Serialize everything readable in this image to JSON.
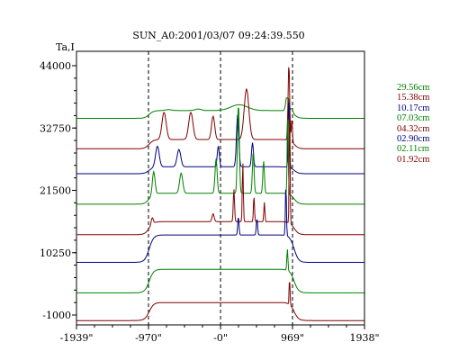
{
  "chart_data": {
    "type": "line",
    "title": "SUN_A0:2001/03/07 09:24:39.550",
    "ylabel": "Ta,I",
    "xlabel": "",
    "yticks": [
      "44000",
      "32750",
      "21500",
      "10250",
      "-1000"
    ],
    "xticks": [
      "-1939\"",
      "-970\"",
      "-0\"",
      "969\"",
      "1938\""
    ],
    "xlim": [
      -1939,
      1938
    ],
    "ylim": [
      -1000,
      44000
    ],
    "vlines": [
      -970,
      0,
      969
    ],
    "grid": false,
    "legend_position": "right",
    "series": [
      {
        "name": "29.56cm",
        "color": "#008000",
        "offset": 34500,
        "peak": 38000
      },
      {
        "name": "15.38cm",
        "color": "#800000",
        "offset": 29000,
        "peak": 43000
      },
      {
        "name": "10.17cm",
        "color": "#000080",
        "offset": 24500,
        "peak": 37000
      },
      {
        "name": "07.03cm",
        "color": "#008000",
        "offset": 19000,
        "peak": 35500
      },
      {
        "name": "04.32cm",
        "color": "#800000",
        "offset": 13500,
        "peak": 37000
      },
      {
        "name": "02.90cm",
        "color": "#000080",
        "offset": 8500,
        "peak": 25000
      },
      {
        "name": "02.11cm",
        "color": "#008000",
        "offset": 3000,
        "peak": 11500
      },
      {
        "name": "01.92cm",
        "color": "#800000",
        "offset": -2000,
        "peak": 4500
      }
    ]
  }
}
